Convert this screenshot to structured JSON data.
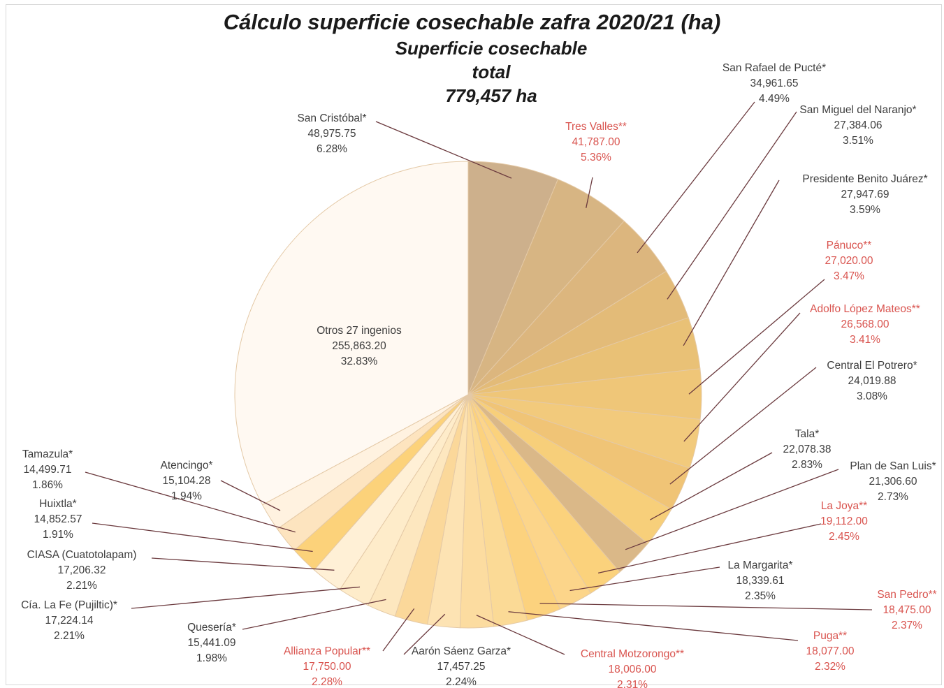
{
  "chart_data": {
    "type": "pie",
    "title": "Cálculo superficie cosechable zafra 2020/21 (ha)",
    "center_caption": [
      "Superficie cosechable",
      "total",
      "779,457 ha"
    ],
    "slices": [
      {
        "name": "San Cristóbal*",
        "value_text": "48,975.75",
        "value": 48975.75,
        "pct_text": "6.28%",
        "pct": 6.28,
        "color": "#cdb08c",
        "highlight": false
      },
      {
        "name": "Tres Valles**",
        "value_text": "41,787.00",
        "value": 41787.0,
        "pct_text": "5.36%",
        "pct": 5.36,
        "color": "#d7b583",
        "highlight": true
      },
      {
        "name": "San Rafael de Pucté*",
        "value_text": "34,961.65",
        "value": 34961.65,
        "pct_text": "4.49%",
        "pct": 4.49,
        "color": "#dcb67e",
        "highlight": false
      },
      {
        "name": "San Miguel del Naranjo*",
        "value_text": "27,384.06",
        "value": 27384.06,
        "pct_text": "3.51%",
        "pct": 3.51,
        "color": "#e3bb78",
        "highlight": false
      },
      {
        "name": "Presidente Benito Juárez*",
        "value_text": "27,947.69",
        "value": 27947.69,
        "pct_text": "3.59%",
        "pct": 3.59,
        "color": "#e9c176",
        "highlight": false
      },
      {
        "name": "Pánuco**",
        "value_text": "27,020.00",
        "value": 27020.0,
        "pct_text": "3.47%",
        "pct": 3.47,
        "color": "#efc678",
        "highlight": true
      },
      {
        "name": "Adolfo López Mateos**",
        "value_text": "26,568.00",
        "value": 26568.0,
        "pct_text": "3.41%",
        "pct": 3.41,
        "color": "#f2ca7c",
        "highlight": true
      },
      {
        "name": "Central El Potrero*",
        "value_text": "24,019.88",
        "value": 24019.88,
        "pct_text": "3.08%",
        "pct": 3.08,
        "color": "#f0c476",
        "highlight": false
      },
      {
        "name": "Tala*",
        "value_text": "22,078.38",
        "value": 22078.38,
        "pct_text": "2.83%",
        "pct": 2.83,
        "color": "#f7cf7a",
        "highlight": false
      },
      {
        "name": "Plan de San Luis*",
        "value_text": "21,306.60",
        "value": 21306.6,
        "pct_text": "2.73%",
        "pct": 2.73,
        "color": "#dab888",
        "highlight": false
      },
      {
        "name": "La Joya**",
        "value_text": "19,112.00",
        "value": 19112.0,
        "pct_text": "2.45%",
        "pct": 2.45,
        "color": "#fbd27c",
        "highlight": true
      },
      {
        "name": "La Margarita*",
        "value_text": "18,339.61",
        "value": 18339.61,
        "pct_text": "2.35%",
        "pct": 2.35,
        "color": "#fcd58a",
        "highlight": false
      },
      {
        "name": "San Pedro**",
        "value_text": "18,475.00",
        "value": 18475.0,
        "pct_text": "2.37%",
        "pct": 2.37,
        "color": "#fcd27e",
        "highlight": true
      },
      {
        "name": "Puga**",
        "value_text": "18,077.00",
        "value": 18077.0,
        "pct_text": "2.32%",
        "pct": 2.32,
        "color": "#fbda96",
        "highlight": true
      },
      {
        "name": "Central Motzorongo**",
        "value_text": "18,006.00",
        "value": 18006.0,
        "pct_text": "2.31%",
        "pct": 2.31,
        "color": "#fcdca0",
        "highlight": true
      },
      {
        "name": "Aarón Sáenz Garza*",
        "value_text": "17,457.25",
        "value": 17457.25,
        "pct_text": "2.24%",
        "pct": 2.24,
        "color": "#fde3b3",
        "highlight": false
      },
      {
        "name": "Allianza Popular**",
        "value_text": "17,750.00",
        "value": 17750.0,
        "pct_text": "2.28%",
        "pct": 2.28,
        "color": "#fbd89a",
        "highlight": true
      },
      {
        "name": "Quesería*",
        "value_text": "15,441.09",
        "value": 15441.09,
        "pct_text": "1.98%",
        "pct": 1.98,
        "color": "#fde7bf",
        "highlight": false
      },
      {
        "name": "Cía. La Fe (Pujiltic)*",
        "value_text": "17,224.14",
        "value": 17224.14,
        "pct_text": "2.21%",
        "pct": 2.21,
        "color": "#feecca",
        "highlight": false
      },
      {
        "name": "CIASA (Cuatotolapam)",
        "value_text": "17,206.32",
        "value": 17206.32,
        "pct_text": "2.21%",
        "pct": 2.21,
        "color": "#fff0d6",
        "highlight": false
      },
      {
        "name": "Huixtla*",
        "value_text": "14,852.57",
        "value": 14852.57,
        "pct_text": "1.91%",
        "pct": 1.91,
        "color": "#fcd27a",
        "highlight": false
      },
      {
        "name": "Tamazula*",
        "value_text": "14,499.71",
        "value": 14499.71,
        "pct_text": "1.86%",
        "pct": 1.86,
        "color": "#fde4bf",
        "highlight": false
      },
      {
        "name": "Atencingo*",
        "value_text": "15,104.28",
        "value": 15104.28,
        "pct_text": "1.94%",
        "pct": 1.94,
        "color": "#fff2e0",
        "highlight": false
      },
      {
        "name": "Otros 27 ingenios",
        "value_text": "255,863.20",
        "value": 255863.2,
        "pct_text": "32.83%",
        "pct": 32.83,
        "color": "#fff9f2",
        "highlight": false
      }
    ],
    "label_color": "#3d3d3d",
    "highlight_label_color": "#d9544f",
    "leader_color": "#6b3a3e"
  }
}
